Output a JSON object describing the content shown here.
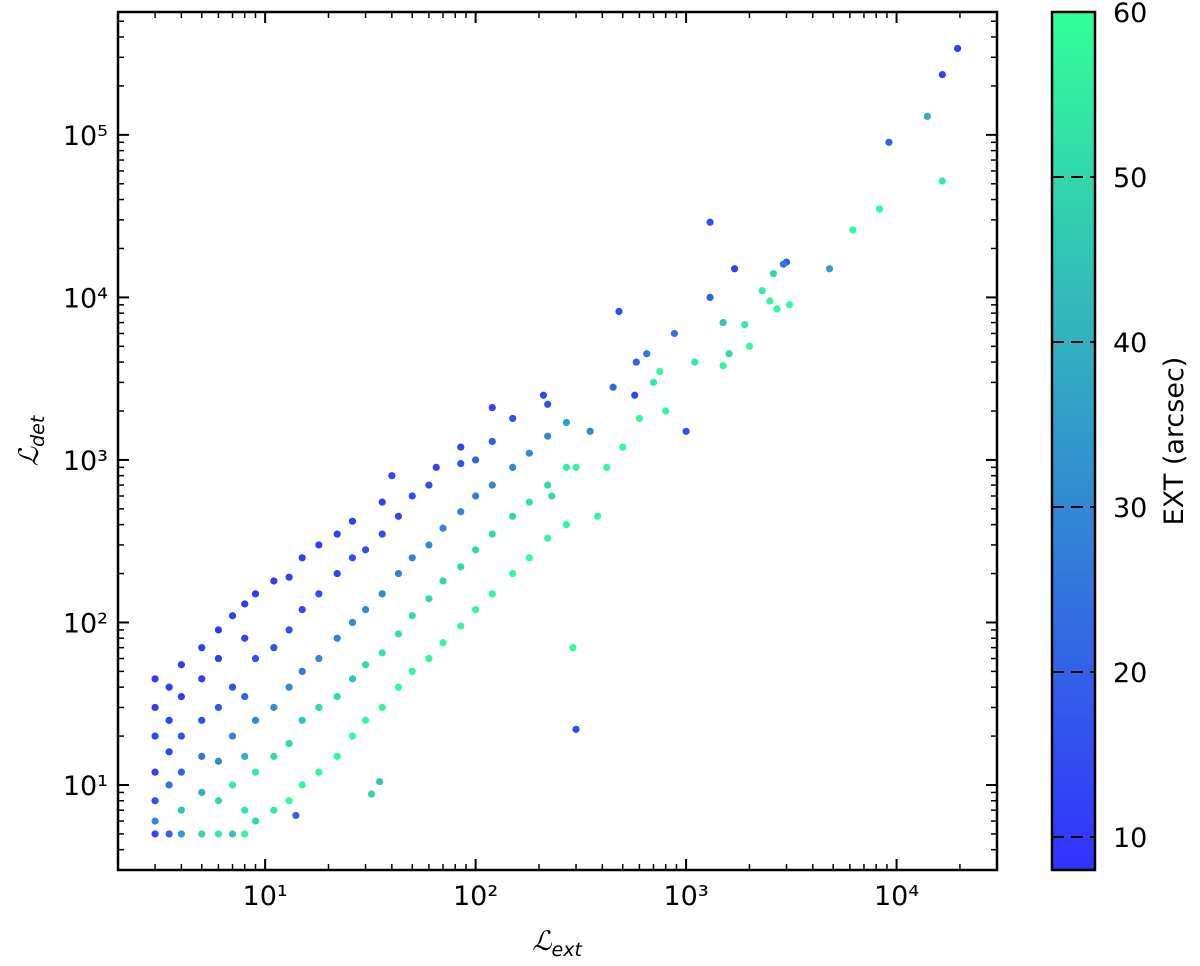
{
  "chart_data": {
    "type": "scatter",
    "xlabel": {
      "symbol": "ℒ",
      "subscript": "ext"
    },
    "ylabel": {
      "symbol": "ℒ",
      "subscript": "det"
    },
    "xscale": "log",
    "yscale": "log",
    "xlim": [
      2,
      30000
    ],
    "ylim": [
      3,
      570000
    ],
    "xticks": [
      {
        "value": 10,
        "label": "10¹"
      },
      {
        "value": 100,
        "label": "10²"
      },
      {
        "value": 1000,
        "label": "10³"
      },
      {
        "value": 10000,
        "label": "10⁴"
      }
    ],
    "yticks": [
      {
        "value": 10,
        "label": "10¹"
      },
      {
        "value": 100,
        "label": "10²"
      },
      {
        "value": 1000,
        "label": "10³"
      },
      {
        "value": 10000,
        "label": "10⁴"
      },
      {
        "value": 100000,
        "label": "10⁵"
      }
    ],
    "xminorticks": [
      3,
      4,
      5,
      6,
      7,
      8,
      9,
      20,
      30,
      40,
      50,
      60,
      70,
      80,
      90,
      200,
      300,
      400,
      500,
      600,
      700,
      800,
      900,
      2000,
      3000,
      4000,
      5000,
      6000,
      7000,
      8000,
      9000,
      20000
    ],
    "yminorticks": [
      4,
      5,
      6,
      7,
      8,
      9,
      20,
      30,
      40,
      50,
      60,
      70,
      80,
      90,
      200,
      300,
      400,
      500,
      600,
      700,
      800,
      900,
      2000,
      3000,
      4000,
      5000,
      6000,
      7000,
      8000,
      9000,
      20000,
      30000,
      40000,
      50000,
      60000,
      70000,
      80000,
      90000,
      200000,
      300000,
      400000,
      500000
    ],
    "colorbar": {
      "label": "EXT (arcsec)",
      "clim": [
        8,
        60
      ],
      "ticks": [
        10,
        20,
        30,
        40,
        50,
        60
      ],
      "colormap": [
        "#3232ff",
        "#32ff98"
      ]
    },
    "points": [
      [
        3,
        5,
        12
      ],
      [
        3,
        8,
        15
      ],
      [
        3,
        12,
        10
      ],
      [
        3,
        20,
        12
      ],
      [
        3,
        30,
        10
      ],
      [
        3,
        45,
        10
      ],
      [
        3,
        6,
        30
      ],
      [
        3.5,
        5,
        20
      ],
      [
        3.5,
        10,
        25
      ],
      [
        3.5,
        16,
        12
      ],
      [
        3.5,
        25,
        11
      ],
      [
        3.5,
        40,
        10
      ],
      [
        4,
        5,
        35
      ],
      [
        4,
        7,
        45
      ],
      [
        4,
        12,
        20
      ],
      [
        4,
        20,
        15
      ],
      [
        4,
        35,
        10
      ],
      [
        4,
        55,
        10
      ],
      [
        5,
        5,
        50
      ],
      [
        5,
        9,
        40
      ],
      [
        5,
        15,
        25
      ],
      [
        5,
        25,
        15
      ],
      [
        5,
        45,
        10
      ],
      [
        5,
        70,
        11
      ],
      [
        6,
        5,
        55
      ],
      [
        6,
        8,
        50
      ],
      [
        6,
        14,
        30
      ],
      [
        6,
        30,
        18
      ],
      [
        6,
        60,
        10
      ],
      [
        6,
        90,
        10
      ],
      [
        7,
        5,
        45
      ],
      [
        7,
        10,
        55
      ],
      [
        7,
        20,
        28
      ],
      [
        7,
        40,
        15
      ],
      [
        7,
        110,
        10
      ],
      [
        8,
        5,
        58
      ],
      [
        8,
        7,
        55
      ],
      [
        8,
        15,
        40
      ],
      [
        8,
        35,
        20
      ],
      [
        8,
        80,
        12
      ],
      [
        8,
        130,
        10
      ],
      [
        9,
        6,
        50
      ],
      [
        9,
        12,
        55
      ],
      [
        9,
        25,
        30
      ],
      [
        9,
        60,
        15
      ],
      [
        9,
        150,
        10
      ],
      [
        11,
        7,
        55
      ],
      [
        11,
        15,
        50
      ],
      [
        11,
        30,
        30
      ],
      [
        11,
        70,
        15
      ],
      [
        11,
        180,
        10
      ],
      [
        13,
        8,
        58
      ],
      [
        13,
        18,
        50
      ],
      [
        13,
        40,
        30
      ],
      [
        13,
        90,
        15
      ],
      [
        13,
        190,
        10
      ],
      [
        15,
        10,
        58
      ],
      [
        15,
        25,
        45
      ],
      [
        15,
        50,
        25
      ],
      [
        15,
        120,
        12
      ],
      [
        15,
        250,
        10
      ],
      [
        18,
        12,
        58
      ],
      [
        18,
        30,
        50
      ],
      [
        18,
        60,
        30
      ],
      [
        18,
        150,
        14
      ],
      [
        18,
        300,
        10
      ],
      [
        22,
        15,
        58
      ],
      [
        22,
        35,
        50
      ],
      [
        22,
        80,
        28
      ],
      [
        22,
        200,
        12
      ],
      [
        22,
        350,
        10
      ],
      [
        26,
        20,
        58
      ],
      [
        26,
        45,
        45
      ],
      [
        26,
        100,
        30
      ],
      [
        26,
        250,
        15
      ],
      [
        26,
        420,
        10
      ],
      [
        30,
        25,
        58
      ],
      [
        30,
        55,
        50
      ],
      [
        30,
        120,
        30
      ],
      [
        30,
        280,
        15
      ],
      [
        36,
        30,
        58
      ],
      [
        36,
        65,
        52
      ],
      [
        36,
        150,
        30
      ],
      [
        36,
        350,
        14
      ],
      [
        36,
        550,
        11
      ],
      [
        43,
        40,
        58
      ],
      [
        43,
        85,
        52
      ],
      [
        43,
        200,
        28
      ],
      [
        43,
        450,
        13
      ],
      [
        50,
        50,
        58
      ],
      [
        50,
        110,
        50
      ],
      [
        50,
        250,
        28
      ],
      [
        50,
        600,
        14
      ],
      [
        60,
        60,
        58
      ],
      [
        60,
        140,
        50
      ],
      [
        60,
        300,
        30
      ],
      [
        60,
        700,
        15
      ],
      [
        70,
        75,
        58
      ],
      [
        70,
        180,
        50
      ],
      [
        70,
        380,
        28
      ],
      [
        85,
        95,
        58
      ],
      [
        85,
        220,
        50
      ],
      [
        85,
        480,
        28
      ],
      [
        85,
        950,
        15
      ],
      [
        100,
        120,
        58
      ],
      [
        100,
        280,
        50
      ],
      [
        100,
        600,
        28
      ],
      [
        100,
        1000,
        20
      ],
      [
        120,
        150,
        58
      ],
      [
        120,
        350,
        50
      ],
      [
        120,
        700,
        30
      ],
      [
        120,
        1300,
        18
      ],
      [
        150,
        200,
        58
      ],
      [
        150,
        450,
        50
      ],
      [
        150,
        900,
        30
      ],
      [
        150,
        1800,
        15
      ],
      [
        180,
        250,
        58
      ],
      [
        180,
        550,
        52
      ],
      [
        180,
        1100,
        30
      ],
      [
        220,
        330,
        58
      ],
      [
        220,
        700,
        50
      ],
      [
        220,
        1400,
        30
      ],
      [
        220,
        2200,
        15
      ],
      [
        270,
        400,
        58
      ],
      [
        270,
        900,
        55
      ],
      [
        270,
        1700,
        35
      ],
      [
        19500,
        340000,
        10
      ],
      [
        16500,
        235000,
        12
      ],
      [
        14000,
        130000,
        40
      ],
      [
        9200,
        90000,
        20
      ],
      [
        16500,
        52000,
        55
      ],
      [
        8300,
        35000,
        58
      ],
      [
        6200,
        26000,
        58
      ],
      [
        1300,
        29000,
        14
      ],
      [
        4800,
        15000,
        35
      ],
      [
        3000,
        16500,
        18
      ],
      [
        2900,
        16000,
        25
      ],
      [
        2600,
        14000,
        50
      ],
      [
        1700,
        15000,
        12
      ],
      [
        2300,
        11000,
        55
      ],
      [
        2500,
        9500,
        58
      ],
      [
        1300,
        10000,
        20
      ],
      [
        480,
        8200,
        14
      ],
      [
        3100,
        9000,
        58
      ],
      [
        2700,
        8500,
        58
      ],
      [
        1900,
        6800,
        55
      ],
      [
        1500,
        7000,
        45
      ],
      [
        1600,
        4500,
        50
      ],
      [
        2000,
        5000,
        58
      ],
      [
        880,
        6000,
        25
      ],
      [
        1500,
        3800,
        58
      ],
      [
        1100,
        4000,
        55
      ],
      [
        1000,
        1500,
        15
      ],
      [
        700,
        3000,
        55
      ],
      [
        650,
        4500,
        25
      ],
      [
        580,
        4000,
        20
      ],
      [
        750,
        3500,
        58
      ],
      [
        290,
        70,
        58
      ],
      [
        300,
        22,
        15
      ],
      [
        35,
        10.5,
        45
      ],
      [
        32,
        8.8,
        50
      ],
      [
        14,
        6.5,
        20
      ],
      [
        230,
        600,
        50
      ],
      [
        570,
        2500,
        13
      ],
      [
        450,
        2800,
        20
      ],
      [
        800,
        2000,
        58
      ],
      [
        500,
        1200,
        58
      ],
      [
        600,
        1800,
        58
      ],
      [
        350,
        1500,
        30
      ],
      [
        420,
        900,
        58
      ],
      [
        300,
        900,
        58
      ],
      [
        380,
        450,
        58
      ],
      [
        210,
        2500,
        12
      ],
      [
        120,
        2100,
        12
      ],
      [
        85,
        1200,
        12
      ],
      [
        65,
        900,
        12
      ],
      [
        40,
        800,
        12
      ]
    ]
  }
}
